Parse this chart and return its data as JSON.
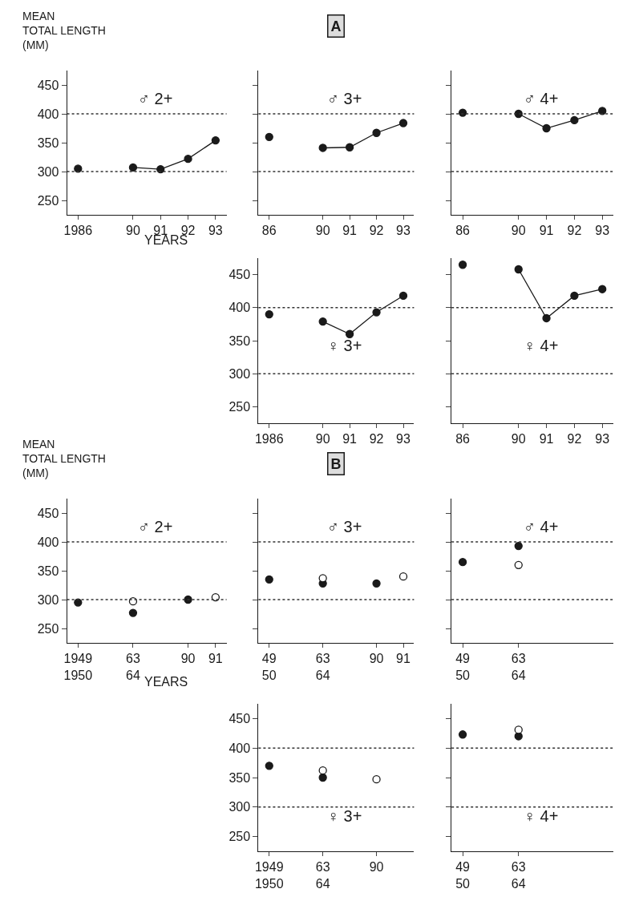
{
  "chart_data": [
    {
      "type": "line",
      "ylabel": "MEAN\nTOTAL LENGTH\n(MM)",
      "xlabel": "YEARS",
      "annotations": [
        "♂ 2+"
      ],
      "categories": [
        "1986",
        null,
        "90",
        "91",
        "92",
        "93"
      ],
      "series": [
        {
          "color": "#1a1a1a",
          "values": [
            305,
            null,
            307,
            304,
            322,
            354
          ]
        }
      ],
      "ylim": [
        225,
        475
      ],
      "yticks": [
        250,
        300,
        350,
        400,
        450
      ],
      "marker": "circle",
      "line_style": "solid",
      "ref_lines": [
        {
          "axis": "y",
          "value": 300,
          "line_style": "dotted",
          "color": "#333333"
        },
        {
          "axis": "y",
          "value": 400,
          "line_style": "dotted",
          "color": "#333333"
        }
      ]
    },
    {
      "type": "line",
      "title": "A",
      "annotations": [
        "♂ 3+"
      ],
      "categories": [
        "86",
        null,
        "90",
        "91",
        "92",
        "93"
      ],
      "series": [
        {
          "color": "#1a1a1a",
          "values": [
            360,
            null,
            341,
            342,
            367,
            384
          ]
        }
      ],
      "ylim": [
        225,
        475
      ],
      "yticks": [
        250,
        300,
        350,
        400,
        450
      ],
      "tick_labels": "x",
      "marker": "circle",
      "line_style": "solid",
      "ref_lines": [
        {
          "axis": "y",
          "value": 300,
          "line_style": "dotted",
          "color": "#333333"
        },
        {
          "axis": "y",
          "value": 400,
          "line_style": "dotted",
          "color": "#333333"
        }
      ]
    },
    {
      "type": "line",
      "annotations": [
        "♂ 4+"
      ],
      "categories": [
        "86",
        null,
        "90",
        "91",
        "92",
        "93"
      ],
      "series": [
        {
          "color": "#1a1a1a",
          "values": [
            402,
            null,
            400,
            375,
            389,
            405
          ]
        }
      ],
      "ylim": [
        225,
        475
      ],
      "yticks": [
        250,
        300,
        350,
        400,
        450
      ],
      "tick_labels": "x",
      "marker": "circle",
      "line_style": "solid",
      "ref_lines": [
        {
          "axis": "y",
          "value": 300,
          "line_style": "dotted",
          "color": "#333333"
        },
        {
          "axis": "y",
          "value": 400,
          "line_style": "dotted",
          "color": "#333333"
        }
      ]
    },
    {
      "type": "line",
      "annotations": [
        "♀ 3+"
      ],
      "categories": [
        "1986",
        null,
        "90",
        "91",
        "92",
        "93"
      ],
      "series": [
        {
          "color": "#1a1a1a",
          "values": [
            390,
            null,
            379,
            360,
            393,
            418
          ]
        }
      ],
      "ylim": [
        225,
        475
      ],
      "yticks": [
        250,
        300,
        350,
        400,
        450
      ],
      "marker": "circle",
      "line_style": "solid",
      "ref_lines": [
        {
          "axis": "y",
          "value": 300,
          "line_style": "dotted",
          "color": "#333333"
        },
        {
          "axis": "y",
          "value": 400,
          "line_style": "dotted",
          "color": "#333333"
        }
      ]
    },
    {
      "type": "line",
      "annotations": [
        "♀ 4+"
      ],
      "categories": [
        "86",
        null,
        "90",
        "91",
        "92",
        "93"
      ],
      "series": [
        {
          "color": "#1a1a1a",
          "values": [
            465,
            null,
            458,
            384,
            418,
            428
          ]
        }
      ],
      "ylim": [
        225,
        475
      ],
      "yticks": [
        250,
        300,
        350,
        400,
        450
      ],
      "tick_labels": "x",
      "marker": "circle",
      "line_style": "solid",
      "ref_lines": [
        {
          "axis": "y",
          "value": 300,
          "line_style": "dotted",
          "color": "#333333"
        },
        {
          "axis": "y",
          "value": 400,
          "line_style": "dotted",
          "color": "#333333"
        }
      ]
    },
    {
      "type": "scatter",
      "ylabel": "MEAN\nTOTAL LENGTH\n(MM)",
      "xlabel": "YEARS",
      "annotations": [
        "♂ 2+"
      ],
      "categories": [
        "1949\n1950",
        null,
        "63\n64",
        null,
        "90",
        "91"
      ],
      "series": [
        {
          "color": "#1a1a1a",
          "values": [
            295,
            null,
            277,
            null,
            300,
            null
          ]
        },
        {
          "color": "#ffffff",
          "values": [
            null,
            null,
            297,
            null,
            null,
            304
          ]
        }
      ],
      "ylim": [
        225,
        475
      ],
      "yticks": [
        250,
        300,
        350,
        400,
        450
      ],
      "marker": "circle",
      "ref_lines": [
        {
          "axis": "y",
          "value": 300,
          "line_style": "dotted",
          "color": "#333333"
        },
        {
          "axis": "y",
          "value": 400,
          "line_style": "dotted",
          "color": "#333333"
        }
      ]
    },
    {
      "type": "scatter",
      "title": "B",
      "annotations": [
        "♂ 3+"
      ],
      "categories": [
        "49\n50",
        null,
        "63\n64",
        null,
        "90",
        "91"
      ],
      "series": [
        {
          "color": "#1a1a1a",
          "values": [
            335,
            null,
            328,
            null,
            328,
            null
          ]
        },
        {
          "color": "#ffffff",
          "values": [
            null,
            null,
            337,
            null,
            null,
            340
          ]
        }
      ],
      "ylim": [
        225,
        475
      ],
      "yticks": [
        250,
        300,
        350,
        400,
        450
      ],
      "tick_labels": "x",
      "marker": "circle",
      "ref_lines": [
        {
          "axis": "y",
          "value": 300,
          "line_style": "dotted",
          "color": "#333333"
        },
        {
          "axis": "y",
          "value": 400,
          "line_style": "dotted",
          "color": "#333333"
        }
      ]
    },
    {
      "type": "scatter",
      "annotations": [
        "♂ 4+"
      ],
      "categories": [
        "49\n50",
        null,
        "63\n64",
        null,
        null,
        null
      ],
      "series": [
        {
          "color": "#1a1a1a",
          "values": [
            365,
            null,
            393,
            null,
            null,
            null
          ]
        },
        {
          "color": "#ffffff",
          "values": [
            null,
            null,
            360,
            null,
            null,
            null
          ]
        }
      ],
      "ylim": [
        225,
        475
      ],
      "yticks": [
        250,
        300,
        350,
        400,
        450
      ],
      "tick_labels": "x",
      "marker": "circle",
      "ref_lines": [
        {
          "axis": "y",
          "value": 300,
          "line_style": "dotted",
          "color": "#333333"
        },
        {
          "axis": "y",
          "value": 400,
          "line_style": "dotted",
          "color": "#333333"
        }
      ]
    },
    {
      "type": "scatter",
      "annotations": [
        "♀ 3+"
      ],
      "categories": [
        "1949\n1950",
        null,
        "63\n64",
        null,
        "90",
        null
      ],
      "series": [
        {
          "color": "#1a1a1a",
          "values": [
            370,
            null,
            350,
            null,
            null,
            null
          ]
        },
        {
          "color": "#ffffff",
          "values": [
            null,
            null,
            362,
            null,
            347,
            null
          ]
        }
      ],
      "ylim": [
        225,
        475
      ],
      "yticks": [
        250,
        300,
        350,
        400,
        450
      ],
      "marker": "circle",
      "ref_lines": [
        {
          "axis": "y",
          "value": 300,
          "line_style": "dotted",
          "color": "#333333"
        },
        {
          "axis": "y",
          "value": 400,
          "line_style": "dotted",
          "color": "#333333"
        }
      ]
    },
    {
      "type": "scatter",
      "annotations": [
        "♀ 4+"
      ],
      "categories": [
        "49\n50",
        null,
        "63\n64",
        null,
        null,
        null
      ],
      "series": [
        {
          "color": "#1a1a1a",
          "values": [
            423,
            null,
            420,
            null,
            null,
            null
          ]
        },
        {
          "color": "#ffffff",
          "values": [
            null,
            null,
            431,
            null,
            null,
            null
          ]
        }
      ],
      "ylim": [
        225,
        475
      ],
      "yticks": [
        250,
        300,
        350,
        400,
        450
      ],
      "tick_labels": "x",
      "marker": "circle",
      "ref_lines": [
        {
          "axis": "y",
          "value": 300,
          "line_style": "dotted",
          "color": "#333333"
        },
        {
          "axis": "y",
          "value": 400,
          "line_style": "dotted",
          "color": "#333333"
        }
      ]
    }
  ]
}
